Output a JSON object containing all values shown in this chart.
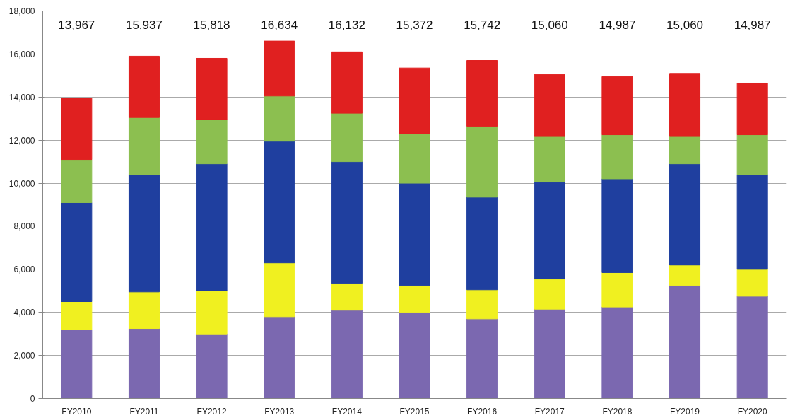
{
  "chart_data": {
    "type": "bar",
    "stacked": true,
    "categories": [
      "FY2010",
      "FY2011",
      "FY2012",
      "FY2013",
      "FY2014",
      "FY2015",
      "FY2016",
      "FY2017",
      "FY2018",
      "FY2019",
      "FY2020"
    ],
    "series": [
      {
        "color": "#7b68b0",
        "values": [
          3200,
          3250,
          3000,
          3800,
          4100,
          4000,
          3700,
          4150,
          4250,
          5250,
          4750
        ]
      },
      {
        "color": "#f0f020",
        "values": [
          1300,
          1700,
          2000,
          2500,
          1250,
          1250,
          1350,
          1400,
          1600,
          950,
          1250
        ]
      },
      {
        "color": "#1f3f9f",
        "values": [
          4600,
          5450,
          5900,
          5650,
          5650,
          4750,
          4300,
          4500,
          4350,
          4700,
          4400
        ]
      },
      {
        "color": "#8cbf50",
        "values": [
          2000,
          2650,
          2050,
          2100,
          2250,
          2300,
          3300,
          2150,
          2050,
          1300,
          1850
        ]
      },
      {
        "color": "#e02020",
        "values": [
          2850,
          2850,
          2850,
          2550,
          2850,
          3050,
          3050,
          2850,
          2700,
          2900,
          2400
        ]
      }
    ],
    "annotations": [
      "13,967",
      "15,937",
      "15,818",
      "16,634",
      "16,132",
      "15,372",
      "15,742",
      "15,060",
      "14,987",
      "15,060",
      "14,987"
    ],
    "ylim": [
      0,
      18000
    ],
    "yticks": [
      0,
      {
        "value": 2000,
        "label": "2,000"
      },
      {
        "value": 4000,
        "label": "4,000"
      },
      {
        "value": 6000,
        "label": "6,000"
      },
      {
        "value": 8000,
        "label": "8,000"
      },
      {
        "value": 10000,
        "label": "10,000"
      },
      {
        "value": 12000,
        "label": "12,000"
      },
      {
        "value": 14000,
        "label": "14,000"
      },
      {
        "value": 16000,
        "label": "16,000"
      },
      {
        "value": 18000,
        "label": "18,000"
      }
    ],
    "grid": "y"
  }
}
